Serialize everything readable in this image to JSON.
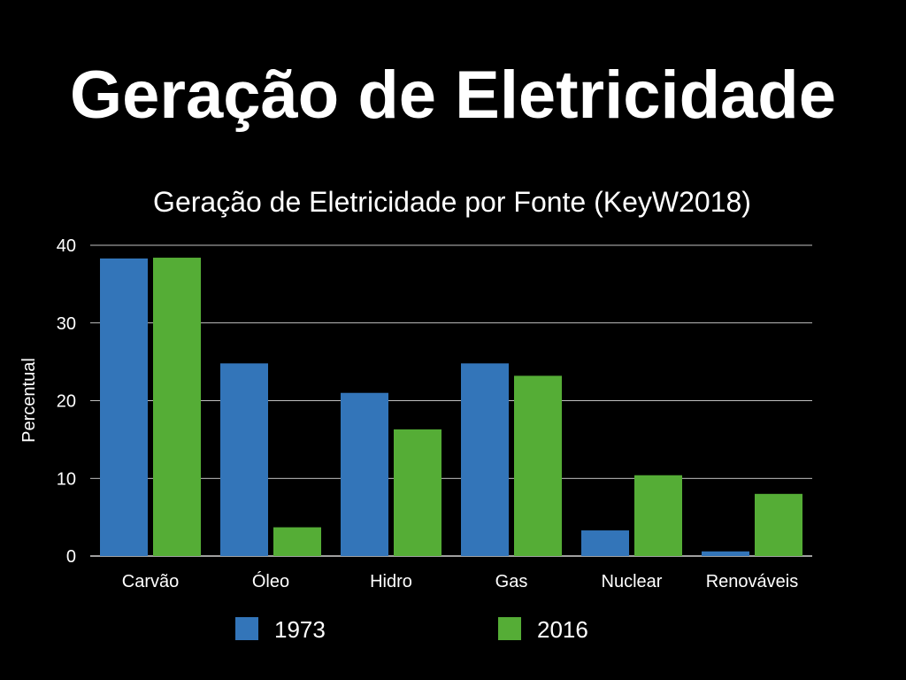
{
  "slide": {
    "title": "Geração de Eletricidade"
  },
  "chart_data": {
    "type": "bar",
    "title": "Geração de Eletricidade por Fonte (KeyW2018)",
    "xlabel": "",
    "ylabel": "Percentual",
    "ylim": [
      0,
      40
    ],
    "yticks": [
      0,
      10,
      20,
      30,
      40
    ],
    "grid": true,
    "legend_position": "bottom",
    "categories": [
      "Carvão",
      "Óleo",
      "Hidro",
      "Gas",
      "Nuclear",
      "Renováveis"
    ],
    "series": [
      {
        "name": "1973",
        "color": "#3375b9",
        "values": [
          38.3,
          24.8,
          21.0,
          24.8,
          3.3,
          0.6
        ]
      },
      {
        "name": "2016",
        "color": "#55ad36",
        "values": [
          38.4,
          3.7,
          16.3,
          23.2,
          10.4,
          8.0
        ]
      }
    ]
  }
}
